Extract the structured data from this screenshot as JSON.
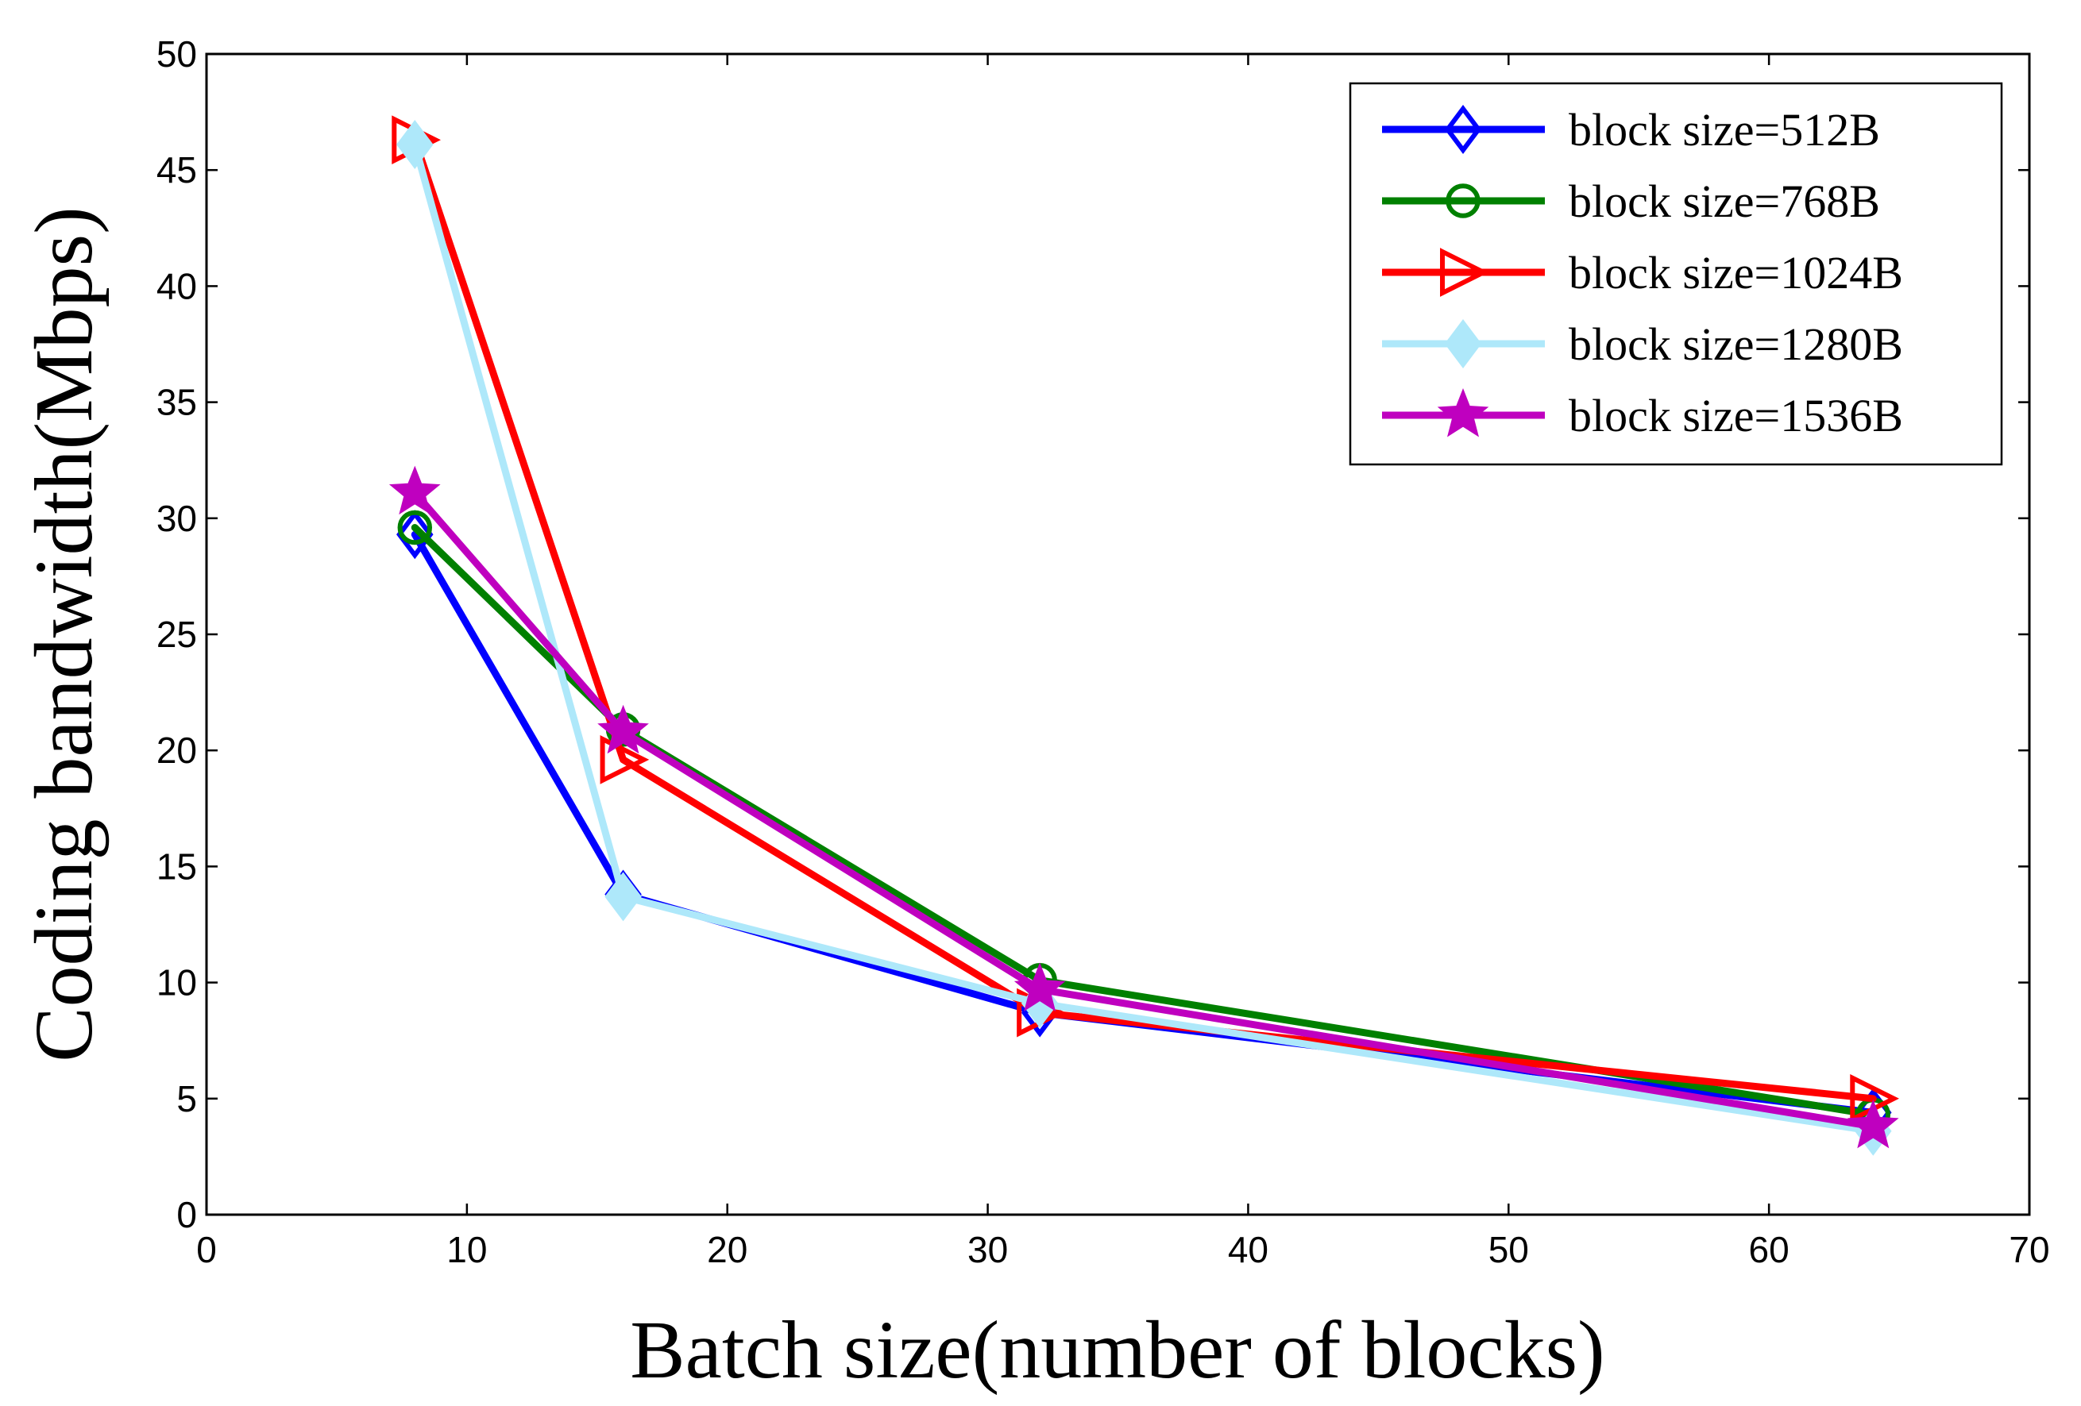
{
  "chart_data": {
    "type": "line",
    "title": "",
    "xlabel": "Batch size(number of blocks)",
    "ylabel": "Coding bandwidth(Mbps)",
    "xlim": [
      0,
      70
    ],
    "ylim": [
      0,
      50
    ],
    "xticks": [
      0,
      10,
      20,
      30,
      40,
      50,
      60,
      70
    ],
    "yticks": [
      0,
      5,
      10,
      15,
      20,
      25,
      30,
      35,
      40,
      45,
      50
    ],
    "grid": false,
    "legend_position": "top-right",
    "x": [
      8,
      16,
      32,
      64
    ],
    "series": [
      {
        "name": "block size=512B",
        "color": "#0000ff",
        "marker": "diamond",
        "values": [
          29.3,
          13.8,
          8.7,
          4.4
        ]
      },
      {
        "name": "block size=768B",
        "color": "#008000",
        "marker": "circle",
        "values": [
          29.6,
          20.9,
          10.1,
          4.3
        ]
      },
      {
        "name": "block size=1024B",
        "color": "#ff0000",
        "marker": "triangle-right",
        "values": [
          46.3,
          19.6,
          8.7,
          5.0
        ]
      },
      {
        "name": "block size=1280B",
        "color": "#aee8fa",
        "marker": "plus-diamond",
        "values": [
          46.1,
          13.7,
          9.1,
          3.6
        ]
      },
      {
        "name": "block size=1536B",
        "color": "#bf00bf",
        "marker": "star",
        "values": [
          31.1,
          20.8,
          9.7,
          3.8
        ]
      }
    ]
  }
}
